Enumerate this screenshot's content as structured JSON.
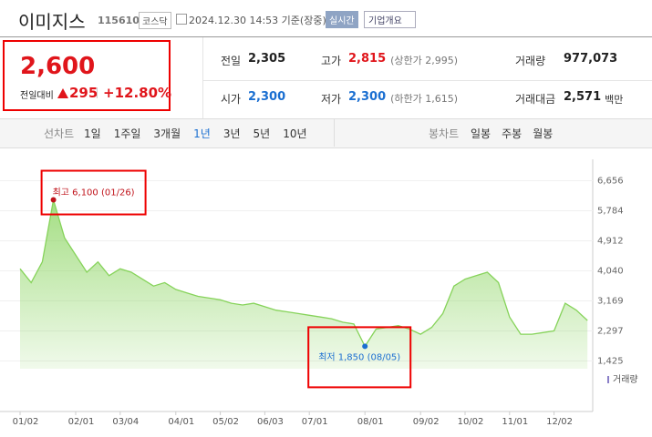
{
  "header": {
    "name": "이미지스",
    "code": "115610",
    "market": "코스닥",
    "timestamp": "2024.12.30 14:53 기준(장중)",
    "realtime_button": "실시간",
    "company_button": "기업개요"
  },
  "price": {
    "current": "2,600",
    "change_label": "전일대비",
    "change": "295",
    "change_pct": "+12.80%"
  },
  "stats": [
    {
      "label": "전일",
      "value": "2,305"
    },
    {
      "label": "고가",
      "value": "2,815",
      "extra": "(상한가 2,995)"
    },
    {
      "label": "거래량",
      "value": "977,073"
    },
    {
      "label": "시가",
      "value": "2,300"
    },
    {
      "label": "저가",
      "value": "2,300",
      "extra": "(하한가 1,615)"
    },
    {
      "label": "거래대금",
      "value": "2,571",
      "unit": "백만"
    }
  ],
  "tabs": {
    "line_label": "선차트",
    "periods": [
      "1일",
      "1주일",
      "3개월",
      "1년",
      "3년",
      "5년",
      "10년"
    ],
    "selected_period": 3,
    "candle_label": "봉차트",
    "candle_periods": [
      "일봉",
      "주봉",
      "월봉"
    ]
  },
  "chart_data": {
    "type": "area",
    "color": "#86d35a",
    "grid": true,
    "categories": [
      "01/02",
      null,
      null,
      null,
      null,
      "02/01",
      null,
      null,
      null,
      "03/04",
      null,
      null,
      null,
      null,
      "04/01",
      null,
      null,
      null,
      "05/02",
      null,
      null,
      null,
      "06/03",
      null,
      null,
      null,
      "07/01",
      null,
      null,
      null,
      null,
      "08/01",
      null,
      null,
      null,
      null,
      "09/02",
      null,
      null,
      null,
      "10/02",
      null,
      null,
      null,
      "11/01",
      null,
      null,
      null,
      "12/02",
      null,
      null,
      null
    ],
    "values": [
      4100,
      3700,
      4300,
      6100,
      5000,
      4500,
      4000,
      4300,
      3900,
      4100,
      4000,
      3800,
      3600,
      3700,
      3500,
      3400,
      3300,
      3250,
      3200,
      3100,
      3050,
      3100,
      3000,
      2900,
      2850,
      2800,
      2750,
      2700,
      2650,
      2550,
      2500,
      1850,
      2350,
      2400,
      2450,
      2350,
      2200,
      2400,
      2800,
      3600,
      3800,
      3900,
      4000,
      3700,
      2700,
      2200,
      2200,
      2250,
      2300,
      3100,
      2900,
      2600
    ],
    "ylim": [
      1200,
      6880
    ],
    "yticks": [
      {
        "value": 1425,
        "label": "1,425"
      },
      {
        "value": 2297,
        "label": "2,297"
      },
      {
        "value": 3169,
        "label": "3,169"
      },
      {
        "value": 4040,
        "label": "4,040"
      },
      {
        "value": 4912,
        "label": "4,912"
      },
      {
        "value": 5784,
        "label": "5,784"
      },
      {
        "value": 6656,
        "label": "6,656"
      }
    ],
    "annotations": {
      "high": {
        "index": 3,
        "text": "최고 6,100 (01/26)"
      },
      "low": {
        "index": 31,
        "text": "최저 1,850 (08/05)"
      }
    },
    "volume_legend": "거래량"
  }
}
